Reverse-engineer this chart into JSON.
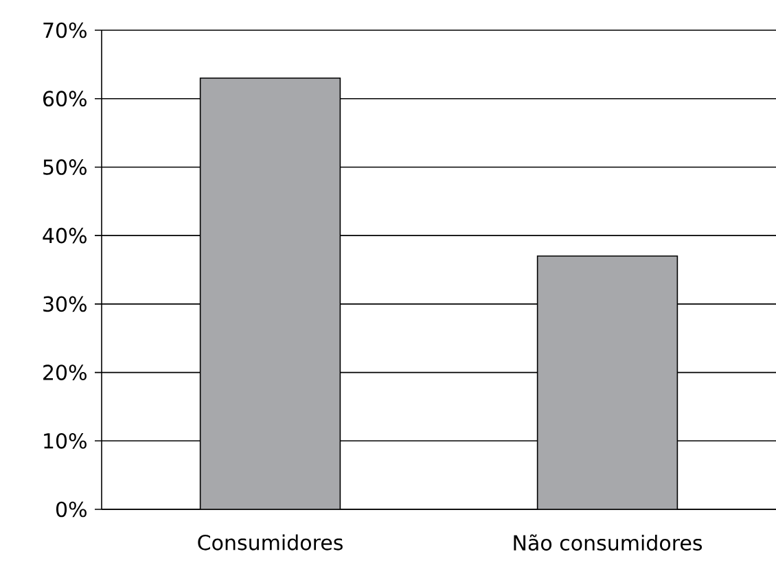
{
  "chart_data": {
    "type": "bar",
    "categories": [
      "Consumidores",
      "Não consumidores"
    ],
    "values": [
      63,
      37
    ],
    "color": "#a7a8ab",
    "ylim": [
      0,
      70
    ],
    "yticks": [
      {
        "value": 0,
        "label": "0%"
      },
      {
        "value": 10,
        "label": "10%"
      },
      {
        "value": 20,
        "label": "20%"
      },
      {
        "value": 30,
        "label": "30%"
      },
      {
        "value": 40,
        "label": "40%"
      },
      {
        "value": 50,
        "label": "50%"
      },
      {
        "value": 60,
        "label": "60%"
      },
      {
        "value": 70,
        "label": "70%"
      }
    ],
    "grid": "y"
  }
}
